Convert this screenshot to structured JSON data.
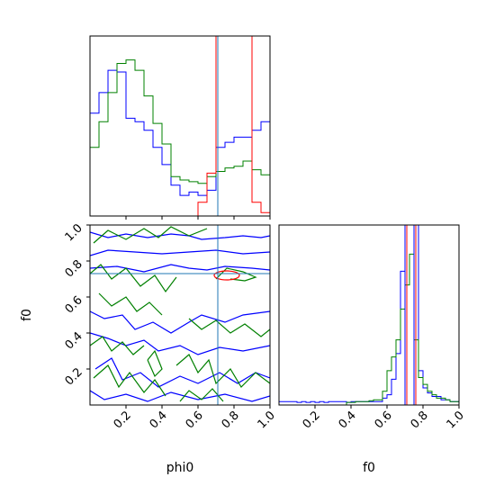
{
  "chart_data": [
    {
      "type": "histogram",
      "panel": "phi0-marginal",
      "xlim": [
        0,
        1
      ],
      "truth": 0.71,
      "bins": [
        0.0,
        0.05,
        0.1,
        0.15,
        0.2,
        0.25,
        0.3,
        0.35,
        0.4,
        0.45,
        0.5,
        0.55,
        0.6,
        0.65,
        0.7,
        0.75,
        0.8,
        0.85,
        0.9,
        0.95,
        1.0
      ],
      "series": [
        {
          "color": "#0000ff",
          "values": [
            0.6,
            0.72,
            0.85,
            0.84,
            0.57,
            0.55,
            0.5,
            0.4,
            0.3,
            0.18,
            0.12,
            0.14,
            0.12,
            0.15,
            0.4,
            0.43,
            0.46,
            0.46,
            0.5,
            0.55
          ]
        },
        {
          "color": "#008000",
          "values": [
            0.4,
            0.55,
            0.72,
            0.89,
            0.91,
            0.85,
            0.7,
            0.54,
            0.42,
            0.23,
            0.21,
            0.2,
            0.19,
            0.23,
            0.26,
            0.28,
            0.29,
            0.32,
            0.27,
            0.24
          ]
        },
        {
          "color": "#ff0000",
          "values": [
            0,
            0,
            0,
            0,
            0,
            0,
            0,
            0,
            0,
            0,
            0,
            0,
            0.08,
            0.25,
            1.05,
            1.05,
            1.05,
            1.05,
            0.08,
            0.02
          ]
        }
      ]
    },
    {
      "type": "contour",
      "panel": "phi0-f0-joint",
      "xlabel": "phi0",
      "ylabel": "f0",
      "xlim": [
        0,
        1
      ],
      "ylim": [
        0,
        1
      ],
      "xticks": [
        "0.2",
        "0.4",
        "0.6",
        "0.8",
        "1.0"
      ],
      "yticks": [
        "0.2",
        "0.4",
        "0.6",
        "0.8",
        "1.0"
      ],
      "truth": [
        0.71,
        0.73
      ],
      "red_contour": {
        "color": "#ff0000",
        "center": [
          0.76,
          0.72
        ],
        "rx": 0.07,
        "ry": 0.025
      },
      "contours": [
        {
          "color": "#0000ff",
          "points": [
            [
              0.0,
              0.96
            ],
            [
              0.1,
              0.93
            ],
            [
              0.2,
              0.95
            ],
            [
              0.32,
              0.93
            ],
            [
              0.45,
              0.95
            ],
            [
              0.55,
              0.94
            ],
            [
              0.62,
              0.92
            ],
            [
              0.75,
              0.93
            ],
            [
              0.85,
              0.94
            ],
            [
              0.95,
              0.93
            ],
            [
              1.0,
              0.94
            ]
          ]
        },
        {
          "color": "#0000ff",
          "points": [
            [
              0.0,
              0.83
            ],
            [
              0.1,
              0.86
            ],
            [
              0.25,
              0.85
            ],
            [
              0.4,
              0.84
            ],
            [
              0.55,
              0.85
            ],
            [
              0.7,
              0.86
            ],
            [
              0.85,
              0.84
            ],
            [
              1.0,
              0.85
            ]
          ]
        },
        {
          "color": "#0000ff",
          "points": [
            [
              0.0,
              0.76
            ],
            [
              0.15,
              0.77
            ],
            [
              0.3,
              0.74
            ],
            [
              0.45,
              0.78
            ],
            [
              0.55,
              0.76
            ],
            [
              0.65,
              0.75
            ],
            [
              0.75,
              0.77
            ],
            [
              0.9,
              0.76
            ],
            [
              1.0,
              0.75
            ]
          ]
        },
        {
          "color": "#0000ff",
          "points": [
            [
              0.0,
              0.52
            ],
            [
              0.08,
              0.48
            ],
            [
              0.18,
              0.5
            ],
            [
              0.25,
              0.42
            ],
            [
              0.35,
              0.46
            ],
            [
              0.45,
              0.4
            ],
            [
              0.55,
              0.46
            ],
            [
              0.62,
              0.5
            ],
            [
              0.75,
              0.46
            ],
            [
              0.85,
              0.5
            ],
            [
              1.0,
              0.52
            ]
          ]
        },
        {
          "color": "#0000ff",
          "points": [
            [
              0.0,
              0.4
            ],
            [
              0.1,
              0.37
            ],
            [
              0.2,
              0.33
            ],
            [
              0.3,
              0.36
            ],
            [
              0.38,
              0.3
            ],
            [
              0.5,
              0.33
            ],
            [
              0.6,
              0.28
            ],
            [
              0.72,
              0.32
            ],
            [
              0.85,
              0.3
            ],
            [
              1.0,
              0.33
            ]
          ]
        },
        {
          "color": "#0000ff",
          "points": [
            [
              0.03,
              0.2
            ],
            [
              0.12,
              0.26
            ],
            [
              0.18,
              0.14
            ],
            [
              0.28,
              0.18
            ],
            [
              0.38,
              0.1
            ],
            [
              0.5,
              0.16
            ],
            [
              0.6,
              0.12
            ],
            [
              0.72,
              0.18
            ],
            [
              0.82,
              0.12
            ],
            [
              0.92,
              0.18
            ],
            [
              1.0,
              0.15
            ]
          ]
        },
        {
          "color": "#0000ff",
          "points": [
            [
              0.0,
              0.08
            ],
            [
              0.08,
              0.03
            ],
            [
              0.2,
              0.06
            ],
            [
              0.32,
              0.02
            ],
            [
              0.45,
              0.07
            ],
            [
              0.6,
              0.03
            ],
            [
              0.75,
              0.06
            ],
            [
              0.9,
              0.02
            ],
            [
              1.0,
              0.05
            ]
          ]
        },
        {
          "color": "#008000",
          "points": [
            [
              0.02,
              0.9
            ],
            [
              0.1,
              0.97
            ],
            [
              0.2,
              0.92
            ],
            [
              0.3,
              0.98
            ],
            [
              0.38,
              0.93
            ],
            [
              0.45,
              0.99
            ],
            [
              0.55,
              0.94
            ],
            [
              0.65,
              0.98
            ]
          ]
        },
        {
          "color": "#008000",
          "points": [
            [
              0.0,
              0.73
            ],
            [
              0.06,
              0.78
            ],
            [
              0.12,
              0.7
            ],
            [
              0.2,
              0.76
            ],
            [
              0.28,
              0.66
            ],
            [
              0.36,
              0.72
            ],
            [
              0.42,
              0.63
            ],
            [
              0.48,
              0.71
            ]
          ]
        },
        {
          "color": "#008000",
          "points": [
            [
              0.7,
              0.7
            ],
            [
              0.76,
              0.76
            ],
            [
              0.85,
              0.74
            ],
            [
              0.92,
              0.71
            ],
            [
              0.86,
              0.69
            ],
            [
              0.78,
              0.7
            ]
          ]
        },
        {
          "color": "#008000",
          "points": [
            [
              0.05,
              0.62
            ],
            [
              0.12,
              0.55
            ],
            [
              0.2,
              0.6
            ],
            [
              0.26,
              0.52
            ],
            [
              0.33,
              0.57
            ],
            [
              0.4,
              0.5
            ]
          ]
        },
        {
          "color": "#008000",
          "points": [
            [
              0.55,
              0.48
            ],
            [
              0.62,
              0.42
            ],
            [
              0.7,
              0.47
            ],
            [
              0.78,
              0.4
            ],
            [
              0.86,
              0.45
            ],
            [
              0.95,
              0.38
            ],
            [
              1.0,
              0.42
            ]
          ]
        },
        {
          "color": "#008000",
          "points": [
            [
              0.0,
              0.33
            ],
            [
              0.07,
              0.38
            ],
            [
              0.12,
              0.3
            ],
            [
              0.18,
              0.35
            ],
            [
              0.24,
              0.28
            ],
            [
              0.3,
              0.33
            ]
          ]
        },
        {
          "color": "#008000",
          "points": [
            [
              0.02,
              0.15
            ],
            [
              0.1,
              0.22
            ],
            [
              0.16,
              0.1
            ],
            [
              0.22,
              0.18
            ],
            [
              0.3,
              0.07
            ],
            [
              0.36,
              0.14
            ],
            [
              0.42,
              0.05
            ]
          ]
        },
        {
          "color": "#008000",
          "points": [
            [
              0.48,
              0.22
            ],
            [
              0.55,
              0.28
            ],
            [
              0.6,
              0.18
            ],
            [
              0.66,
              0.25
            ],
            [
              0.7,
              0.12
            ],
            [
              0.78,
              0.2
            ],
            [
              0.84,
              0.1
            ],
            [
              0.92,
              0.18
            ],
            [
              1.0,
              0.12
            ]
          ]
        },
        {
          "color": "#008000",
          "points": [
            [
              0.32,
              0.25
            ],
            [
              0.36,
              0.3
            ],
            [
              0.4,
              0.2
            ],
            [
              0.36,
              0.16
            ],
            [
              0.32,
              0.25
            ]
          ]
        },
        {
          "color": "#008000",
          "points": [
            [
              0.5,
              0.02
            ],
            [
              0.55,
              0.08
            ],
            [
              0.62,
              0.03
            ],
            [
              0.68,
              0.09
            ],
            [
              0.74,
              0.02
            ]
          ]
        }
      ]
    },
    {
      "type": "histogram",
      "panel": "f0-marginal",
      "xlabel": "f0",
      "xlim": [
        0,
        1
      ],
      "xticks": [
        "0.2",
        "0.4",
        "0.6",
        "0.8",
        "1.0"
      ],
      "truth": 0.73,
      "vlines": [
        {
          "color": "#ff0000",
          "x": 0.71
        },
        {
          "color": "#ff0000",
          "x": 0.76
        },
        {
          "color": "#0000ff",
          "x": 0.7
        },
        {
          "color": "#0000ff",
          "x": 0.75
        }
      ],
      "bins": [
        0.0,
        0.025,
        0.05,
        0.075,
        0.1,
        0.125,
        0.15,
        0.175,
        0.2,
        0.225,
        0.25,
        0.275,
        0.3,
        0.325,
        0.35,
        0.375,
        0.4,
        0.425,
        0.45,
        0.475,
        0.5,
        0.525,
        0.55,
        0.575,
        0.6,
        0.625,
        0.65,
        0.675,
        0.7,
        0.725,
        0.75,
        0.775,
        0.8,
        0.825,
        0.85,
        0.875,
        0.9,
        0.925,
        0.95,
        0.975,
        1.0
      ],
      "series": [
        {
          "color": "#0000ff",
          "values": [
            0.02,
            0.02,
            0.02,
            0.02,
            0.015,
            0.02,
            0.015,
            0.02,
            0.015,
            0.02,
            0.015,
            0.02,
            0.02,
            0.02,
            0.02,
            0.015,
            0.02,
            0.02,
            0.02,
            0.02,
            0.02,
            0.02,
            0.02,
            0.04,
            0.06,
            0.15,
            0.3,
            0.78,
            1.05,
            1.05,
            1.05,
            0.2,
            0.1,
            0.07,
            0.05,
            0.05,
            0.03,
            0.03,
            0.02,
            0.02
          ]
        },
        {
          "color": "#008000",
          "values": [
            0,
            0,
            0,
            0,
            0,
            0,
            0,
            0,
            0,
            0,
            0,
            0,
            0,
            0,
            0,
            0.015,
            0.015,
            0.02,
            0.02,
            0.02,
            0.025,
            0.03,
            0.03,
            0.08,
            0.2,
            0.28,
            0.38,
            0.56,
            0.7,
            0.88,
            0.38,
            0.16,
            0.12,
            0.08,
            0.06,
            0.04,
            0.04,
            0.03,
            0.02,
            0.02
          ]
        }
      ]
    }
  ]
}
